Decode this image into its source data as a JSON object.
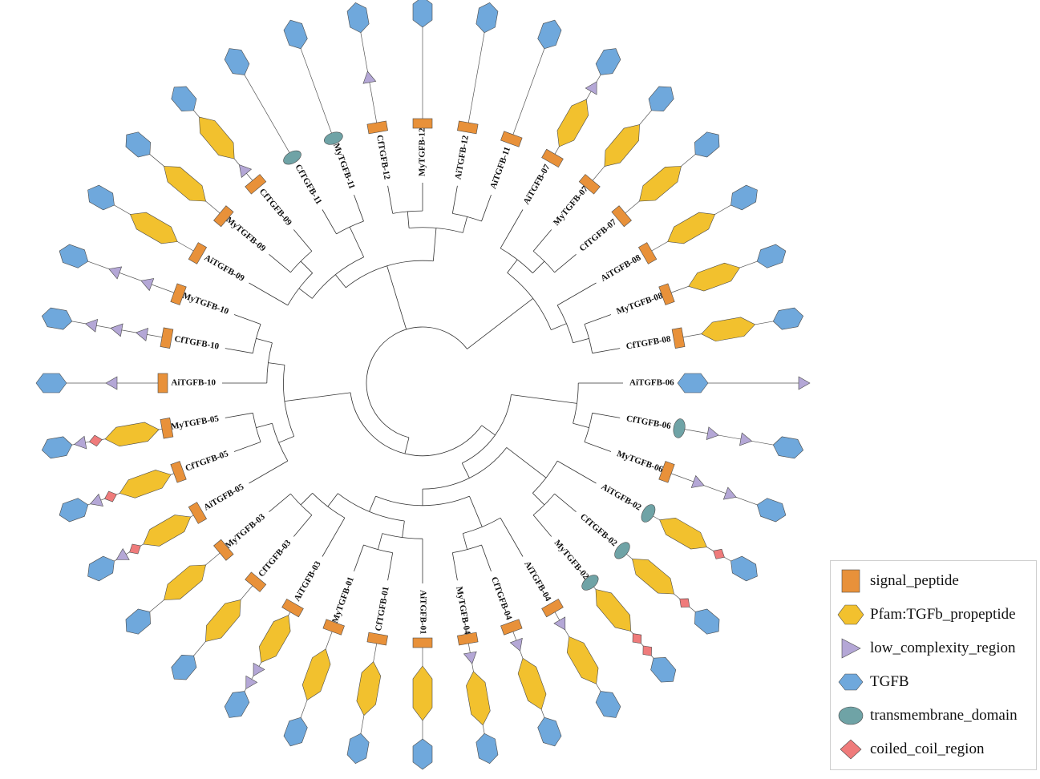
{
  "colors": {
    "signal_peptide": "#e8913a",
    "propeptide": "#f2c12e",
    "low_complexity": "#b4a7d6",
    "tgfb": "#6fa8dc",
    "transmembrane": "#6fa3a6",
    "coiled_coil": "#ef7b7b",
    "branch": "#333333"
  },
  "legend": [
    {
      "key": "signal_peptide",
      "label": "signal_peptide",
      "shape": "rect"
    },
    {
      "key": "propeptide",
      "label": "Pfam:TGFb_propeptide",
      "shape": "hexagon"
    },
    {
      "key": "low_complexity",
      "label": "low_complexity_region",
      "shape": "triangle"
    },
    {
      "key": "tgfb",
      "label": "TGFB",
      "shape": "hexagon-small"
    },
    {
      "key": "transmembrane",
      "label": "transmembrane_domain",
      "shape": "ellipse"
    },
    {
      "key": "coiled_coil",
      "label": "coiled_coil_region",
      "shape": "diamond"
    }
  ],
  "leaves": [
    {
      "name": "AiTGFB-06",
      "domains": [
        "tgfb",
        "low_complexity"
      ]
    },
    {
      "name": "CfTGFB-06",
      "domains": [
        "transmembrane",
        "low_complexity",
        "low_complexity",
        "tgfb"
      ]
    },
    {
      "name": "MyTGFB-06",
      "domains": [
        "signal_peptide",
        "low_complexity",
        "low_complexity",
        "tgfb"
      ]
    },
    {
      "name": "AiTGFB-02",
      "domains": [
        "transmembrane",
        "propeptide",
        "coiled_coil",
        "tgfb"
      ]
    },
    {
      "name": "CfTGFB-02",
      "domains": [
        "transmembrane",
        "propeptide",
        "coiled_coil",
        "tgfb"
      ]
    },
    {
      "name": "MyTGFB-02",
      "domains": [
        "transmembrane",
        "propeptide",
        "coiled_coil",
        "coiled_coil",
        "tgfb"
      ]
    },
    {
      "name": "AiTGFB-04",
      "domains": [
        "signal_peptide",
        "low_complexity",
        "propeptide",
        "tgfb"
      ]
    },
    {
      "name": "CfTGFB-04",
      "domains": [
        "signal_peptide",
        "low_complexity",
        "propeptide",
        "tgfb"
      ]
    },
    {
      "name": "MyTGFB-04",
      "domains": [
        "signal_peptide",
        "low_complexity",
        "propeptide",
        "tgfb"
      ]
    },
    {
      "name": "AiTGFB-01",
      "domains": [
        "signal_peptide",
        "propeptide",
        "tgfb"
      ]
    },
    {
      "name": "CfTGFB-01",
      "domains": [
        "signal_peptide",
        "propeptide",
        "tgfb"
      ]
    },
    {
      "name": "MyTGFB-01",
      "domains": [
        "signal_peptide",
        "propeptide",
        "tgfb"
      ]
    },
    {
      "name": "AiTGFB-03",
      "domains": [
        "signal_peptide",
        "propeptide",
        "low_complexity",
        "low_complexity",
        "tgfb"
      ]
    },
    {
      "name": "CfTGFB-03",
      "domains": [
        "signal_peptide",
        "propeptide",
        "tgfb"
      ]
    },
    {
      "name": "MyTGFB-03",
      "domains": [
        "signal_peptide",
        "propeptide",
        "tgfb"
      ]
    },
    {
      "name": "AiTGFB-05",
      "domains": [
        "signal_peptide",
        "propeptide",
        "coiled_coil",
        "low_complexity",
        "tgfb"
      ]
    },
    {
      "name": "CfTGFB-05",
      "domains": [
        "signal_peptide",
        "propeptide",
        "coiled_coil",
        "low_complexity",
        "tgfb"
      ]
    },
    {
      "name": "MyTGFB-05",
      "domains": [
        "signal_peptide",
        "propeptide",
        "coiled_coil",
        "low_complexity",
        "tgfb"
      ]
    },
    {
      "name": "AiTGFB-10",
      "domains": [
        "signal_peptide",
        "low_complexity",
        "tgfb"
      ]
    },
    {
      "name": "CfTGFB-10",
      "domains": [
        "signal_peptide",
        "low_complexity",
        "low_complexity",
        "low_complexity",
        "tgfb"
      ]
    },
    {
      "name": "MyTGFB-10",
      "domains": [
        "signal_peptide",
        "low_complexity",
        "low_complexity",
        "tgfb"
      ]
    },
    {
      "name": "AiTGFB-09",
      "domains": [
        "signal_peptide",
        "propeptide",
        "tgfb"
      ]
    },
    {
      "name": "MyTGFB-09",
      "domains": [
        "signal_peptide",
        "propeptide",
        "tgfb"
      ]
    },
    {
      "name": "CfTGFB-09",
      "domains": [
        "signal_peptide",
        "low_complexity",
        "propeptide",
        "tgfb"
      ]
    },
    {
      "name": "CfTGFB-11",
      "domains": [
        "transmembrane",
        "tgfb"
      ]
    },
    {
      "name": "MyTGFB-11",
      "domains": [
        "transmembrane",
        "tgfb"
      ]
    },
    {
      "name": "CfTGFB-12",
      "domains": [
        "signal_peptide",
        "low_complexity",
        "tgfb"
      ]
    },
    {
      "name": "MyTGFB-12",
      "domains": [
        "signal_peptide",
        "tgfb"
      ]
    },
    {
      "name": "AiTGFB-12",
      "domains": [
        "signal_peptide",
        "tgfb"
      ]
    },
    {
      "name": "AiTGFB-11",
      "domains": [
        "signal_peptide",
        "tgfb"
      ]
    },
    {
      "name": "AiTGFB-07",
      "domains": [
        "signal_peptide",
        "propeptide",
        "low_complexity",
        "tgfb"
      ]
    },
    {
      "name": "MyTGFB-07",
      "domains": [
        "signal_peptide",
        "propeptide",
        "tgfb"
      ]
    },
    {
      "name": "CfTGFB-07",
      "domains": [
        "signal_peptide",
        "propeptide",
        "tgfb"
      ]
    },
    {
      "name": "AiTGFB-08",
      "domains": [
        "signal_peptide",
        "propeptide",
        "tgfb"
      ]
    },
    {
      "name": "MyTGFB-08",
      "domains": [
        "signal_peptide",
        "propeptide",
        "tgfb"
      ]
    },
    {
      "name": "CfTGFB-08",
      "domains": [
        "signal_peptide",
        "propeptide",
        "tgfb"
      ]
    }
  ]
}
